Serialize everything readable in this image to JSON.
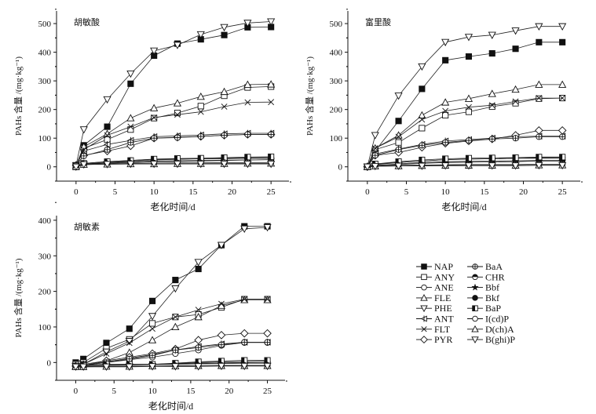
{
  "chart_data": [
    {
      "type": "line",
      "title": "胡敏酸",
      "xlabel": "老化时间/d",
      "ylabel": "PAHs 含量 /(mg·kg⁻¹)",
      "xlim": [
        -2.5,
        27.3
      ],
      "ylim": [
        -50,
        544
      ],
      "xticks": [
        0,
        5,
        10,
        15,
        20,
        25
      ],
      "yticks": [
        0,
        100,
        200,
        300,
        400,
        500
      ],
      "x": [
        0,
        1,
        4,
        7,
        10,
        13,
        16,
        19,
        22,
        25
      ],
      "series": [
        {
          "name": "NAP",
          "values": [
            0,
            75,
            140,
            290,
            388,
            430,
            445,
            460,
            487,
            488
          ]
        },
        {
          "name": "ANY",
          "values": [
            5,
            65,
            95,
            130,
            170,
            188,
            212,
            248,
            277,
            280
          ]
        },
        {
          "name": "ANE",
          "values": [
            5,
            10,
            15,
            20,
            24,
            26,
            28,
            30,
            31,
            32
          ]
        },
        {
          "name": "FLE",
          "values": [
            5,
            70,
            115,
            170,
            205,
            222,
            245,
            262,
            287,
            288
          ]
        },
        {
          "name": "PHE",
          "values": [
            5,
            130,
            235,
            325,
            405,
            425,
            462,
            487,
            502,
            507
          ]
        },
        {
          "name": "ANT",
          "values": [
            5,
            55,
            78,
            92,
            105,
            108,
            111,
            115,
            117,
            117
          ]
        },
        {
          "name": "FLT",
          "values": [
            5,
            60,
            110,
            140,
            172,
            182,
            192,
            210,
            225,
            226
          ]
        },
        {
          "name": "PYR",
          "values": [
            5,
            40,
            55,
            73,
            100,
            103,
            106,
            110,
            113,
            113
          ]
        },
        {
          "name": "BaA",
          "values": [
            5,
            38,
            60,
            85,
            100,
            102,
            106,
            110,
            113,
            113
          ]
        },
        {
          "name": "CHR",
          "values": [
            0,
            12,
            18,
            22,
            26,
            27,
            28,
            28,
            30,
            30
          ]
        },
        {
          "name": "Bbf",
          "values": [
            0,
            10,
            12,
            15,
            18,
            19,
            20,
            22,
            24,
            25
          ]
        },
        {
          "name": "Bkf",
          "values": [
            0,
            10,
            14,
            17,
            20,
            21,
            22,
            23,
            24,
            25
          ]
        },
        {
          "name": "BaP",
          "values": [
            0,
            12,
            18,
            22,
            27,
            29,
            30,
            32,
            34,
            35
          ]
        },
        {
          "name": "I(cd)P",
          "values": [
            0,
            8,
            10,
            12,
            13,
            14,
            14,
            15,
            15,
            15
          ]
        },
        {
          "name": "D(ch)A",
          "values": [
            0,
            8,
            9,
            10,
            10,
            11,
            11,
            11,
            12,
            12
          ]
        },
        {
          "name": "B(ghi)P",
          "values": [
            0,
            8,
            9,
            10,
            10,
            10,
            10,
            10,
            10,
            10
          ]
        }
      ]
    },
    {
      "type": "line",
      "title": "富里酸",
      "xlabel": "老化时间/d",
      "ylabel": "PAHs 含量 /(mg·kg⁻¹)",
      "xlim": [
        -2.5,
        27.3
      ],
      "ylim": [
        -50,
        544
      ],
      "xticks": [
        0,
        5,
        10,
        15,
        20,
        25
      ],
      "yticks": [
        0,
        100,
        200,
        300,
        400,
        500
      ],
      "x": [
        0,
        1,
        4,
        7,
        10,
        13,
        16,
        19,
        22,
        25
      ],
      "series": [
        {
          "name": "NAP",
          "values": [
            0,
            55,
            160,
            272,
            372,
            385,
            396,
            412,
            435,
            435
          ]
        },
        {
          "name": "ANY",
          "values": [
            0,
            60,
            85,
            135,
            180,
            192,
            210,
            222,
            238,
            240
          ]
        },
        {
          "name": "ANE",
          "values": [
            0,
            8,
            15,
            20,
            25,
            27,
            28,
            30,
            32,
            33
          ]
        },
        {
          "name": "FLE",
          "values": [
            0,
            65,
            110,
            180,
            225,
            238,
            255,
            270,
            287,
            287
          ]
        },
        {
          "name": "PHE",
          "values": [
            0,
            110,
            248,
            350,
            435,
            453,
            460,
            475,
            490,
            490
          ]
        },
        {
          "name": "ANT",
          "values": [
            0,
            45,
            62,
            78,
            90,
            95,
            100,
            105,
            107,
            107
          ]
        },
        {
          "name": "FLT",
          "values": [
            0,
            65,
            105,
            165,
            195,
            208,
            215,
            228,
            240,
            240
          ]
        },
        {
          "name": "PYR",
          "values": [
            0,
            40,
            50,
            68,
            82,
            90,
            97,
            110,
            127,
            127
          ]
        },
        {
          "name": "BaA",
          "values": [
            0,
            40,
            60,
            75,
            85,
            92,
            97,
            100,
            105,
            105
          ]
        },
        {
          "name": "CHR",
          "values": [
            0,
            10,
            15,
            20,
            25,
            27,
            28,
            30,
            30,
            30
          ]
        },
        {
          "name": "Bbf",
          "values": [
            0,
            5,
            8,
            12,
            15,
            16,
            17,
            18,
            20,
            20
          ]
        },
        {
          "name": "Bkf",
          "values": [
            0,
            5,
            10,
            15,
            18,
            19,
            20,
            21,
            22,
            22
          ]
        },
        {
          "name": "BaP",
          "values": [
            0,
            10,
            18,
            24,
            28,
            30,
            31,
            32,
            34,
            34
          ]
        },
        {
          "name": "I(cd)P",
          "values": [
            0,
            3,
            5,
            6,
            7,
            8,
            8,
            8,
            9,
            9
          ]
        },
        {
          "name": "D(ch)A",
          "values": [
            0,
            2,
            3,
            4,
            5,
            5,
            5,
            5,
            6,
            6
          ]
        },
        {
          "name": "B(ghi)P",
          "values": [
            0,
            2,
            3,
            3,
            4,
            4,
            4,
            4,
            5,
            5
          ]
        }
      ]
    },
    {
      "type": "line",
      "title": "胡敏素",
      "xlabel": "老化时间/d",
      "ylabel": "PAHs 含量 /(mg·kg⁻¹)",
      "xlim": [
        -2.5,
        27.3
      ],
      "ylim": [
        -50,
        413
      ],
      "xticks": [
        0,
        5,
        10,
        15,
        20,
        25
      ],
      "yticks": [
        0,
        100,
        200,
        300,
        400
      ],
      "x": [
        0,
        1,
        4,
        7,
        10,
        13,
        16,
        19,
        22,
        25
      ],
      "series": [
        {
          "name": "NAP",
          "values": [
            0,
            10,
            55,
            95,
            173,
            232,
            263,
            330,
            383,
            383
          ]
        },
        {
          "name": "ANY",
          "values": [
            -5,
            0,
            40,
            65,
            110,
            128,
            135,
            155,
            178,
            178
          ]
        },
        {
          "name": "ANE",
          "values": [
            -10,
            -8,
            0,
            8,
            15,
            25,
            35,
            48,
            56,
            56
          ]
        },
        {
          "name": "FLE",
          "values": [
            -10,
            -5,
            5,
            28,
            63,
            100,
            128,
            160,
            176,
            176
          ]
        },
        {
          "name": "PHE",
          "values": [
            -10,
            -5,
            30,
            60,
            130,
            208,
            282,
            330,
            376,
            380
          ]
        },
        {
          "name": "ANT",
          "values": [
            -10,
            -8,
            2,
            12,
            22,
            35,
            45,
            52,
            57,
            57
          ]
        },
        {
          "name": "FLT",
          "values": [
            -10,
            -5,
            25,
            55,
            95,
            128,
            148,
            165,
            178,
            178
          ]
        },
        {
          "name": "PYR",
          "values": [
            -10,
            -8,
            5,
            15,
            25,
            38,
            63,
            77,
            82,
            82
          ]
        },
        {
          "name": "BaA",
          "values": [
            -10,
            -8,
            0,
            10,
            20,
            35,
            42,
            50,
            57,
            57
          ]
        },
        {
          "name": "CHR",
          "values": [
            -10,
            -8,
            -6,
            -5,
            -5,
            -3,
            0,
            2,
            3,
            4
          ]
        },
        {
          "name": "Bbf",
          "values": [
            -10,
            -9,
            -8,
            -7,
            -6,
            -5,
            -4,
            -3,
            -2,
            -2
          ]
        },
        {
          "name": "Bkf",
          "values": [
            -10,
            -9,
            -7,
            -6,
            -5,
            -4,
            -2,
            -1,
            0,
            0
          ]
        },
        {
          "name": "BaP",
          "values": [
            -10,
            -8,
            -5,
            -5,
            -5,
            -2,
            2,
            4,
            6,
            6
          ]
        },
        {
          "name": "I(cd)P",
          "values": [
            -12,
            -11,
            -11,
            -10,
            -10,
            -9,
            -9,
            -8,
            -8,
            -8
          ]
        },
        {
          "name": "D(ch)A",
          "values": [
            -12,
            -12,
            -11,
            -11,
            -10,
            -10,
            -9,
            -9,
            -9,
            -9
          ]
        },
        {
          "name": "B(ghi)P",
          "values": [
            -12,
            -12,
            -12,
            -12,
            -11,
            -11,
            -11,
            -10,
            -10,
            -10
          ]
        }
      ]
    }
  ],
  "legend": {
    "placement": "bottom-right",
    "markers": {
      "NAP": "filled-square",
      "ANY": "open-square",
      "ANE": "open-circle",
      "FLE": "open-triangle-up",
      "PHE": "open-triangle-down",
      "ANT": "left-triangle-bar",
      "FLT": "x-cross",
      "PYR": "open-diamond",
      "BaA": "crossed-circle",
      "CHR": "half-filled-circle",
      "Bbf": "filled-star",
      "Bkf": "filled-circle",
      "BaP": "half-filled-square",
      "I(cd)P": "open-circle",
      "D(ch)A": "open-triangle-up",
      "B(ghi)P": "open-triangle-down"
    }
  }
}
